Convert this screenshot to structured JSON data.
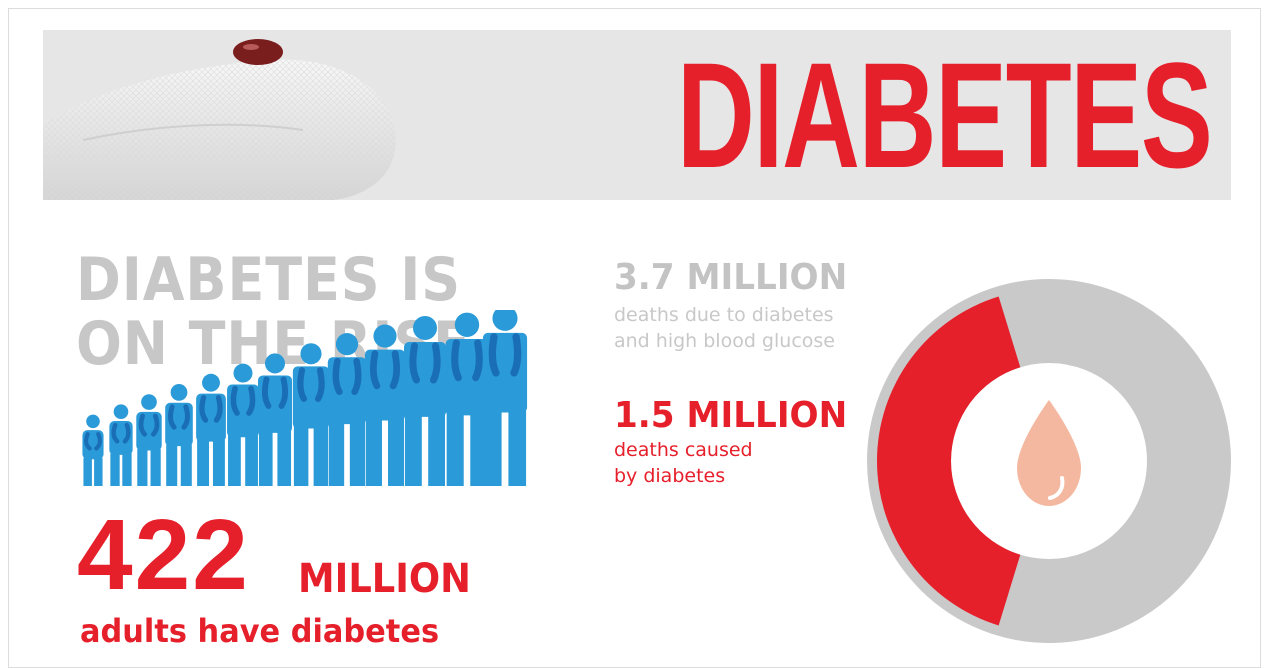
{
  "banner": {
    "title": "DIABETES"
  },
  "rise": {
    "line1": "DIABETES IS",
    "line2": "ON THE RISE"
  },
  "adults": {
    "number": "422",
    "unit": "MILLION",
    "caption": "adults have diabetes"
  },
  "stats": {
    "total": {
      "value": "3.7 MILLION",
      "label_line1": "deaths due to diabetes",
      "label_line2": "and high blood glucose"
    },
    "caused": {
      "value": "1.5 MILLION",
      "label_line1": "deaths caused",
      "label_line2": "by diabetes"
    }
  },
  "donut": {
    "total_millions": 3.7,
    "caused_millions": 1.5
  },
  "colors": {
    "accent_red": "#e6202b",
    "gray": "#c7c7c8",
    "people_blue": "#2a9ad8",
    "people_dark_blue": "#1a6eb5",
    "drop": "#f4b8a0"
  },
  "icons": {
    "finger": "finger-blood-drop-illustration",
    "people": "people-growing-icons",
    "drop": "blood-drop-icon"
  }
}
